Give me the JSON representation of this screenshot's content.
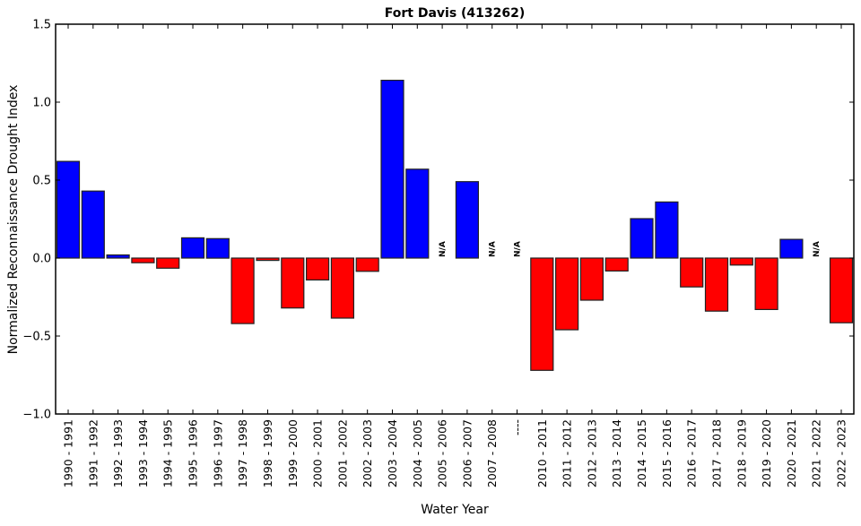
{
  "chart_data": {
    "type": "bar",
    "title": "Fort Davis (413262)",
    "xlabel": "Water Year",
    "ylabel": "Normalized Reconnaissance Drought Index",
    "ylim": [
      -1.0,
      1.5
    ],
    "yticks": [
      -1.0,
      -0.5,
      0.0,
      0.5,
      1.0,
      1.5
    ],
    "ytick_labels": [
      "−1.0",
      "−0.5",
      "0.0",
      "0.5",
      "1.0",
      "1.5"
    ],
    "grid": false,
    "legend": null,
    "colors": {
      "positive": "#0000ff",
      "negative": "#ff0000",
      "edge": "#222222"
    },
    "categories": [
      "1990 - 1991",
      "1991 - 1992",
      "1992 - 1993",
      "1993 - 1994",
      "1994 - 1995",
      "1995 - 1996",
      "1996 - 1997",
      "1997 - 1998",
      "1998 - 1999",
      "1999 - 2000",
      "2000 - 2001",
      "2001 - 2002",
      "2002 - 2003",
      "2003 - 2004",
      "2004 - 2005",
      "2005 - 2006",
      "2006 - 2007",
      "2007 - 2008",
      "----",
      "2010 - 2011",
      "2011 - 2012",
      "2012 - 2013",
      "2013 - 2014",
      "2014 - 2015",
      "2015 - 2016",
      "2016 - 2017",
      "2017 - 2018",
      "2018 - 2019",
      "2019 - 2020",
      "2020 - 2021",
      "2021 - 2022",
      "2022 - 2023"
    ],
    "values": [
      0.62,
      0.43,
      0.02,
      -0.03,
      -0.065,
      0.13,
      0.125,
      -0.42,
      -0.015,
      -0.32,
      -0.14,
      -0.385,
      -0.085,
      1.14,
      0.57,
      null,
      0.49,
      null,
      null,
      -0.72,
      -0.46,
      -0.27,
      -0.083,
      0.253,
      0.36,
      -0.185,
      -0.34,
      -0.045,
      -0.33,
      0.12,
      null,
      -0.415
    ],
    "missing_label": "N/A",
    "annotations": [
      {
        "category": "2005 - 2006",
        "text": "N/A"
      },
      {
        "category": "2007 - 2008",
        "text": "N/A"
      },
      {
        "category": "----",
        "text": "N/A"
      },
      {
        "category": "2021 - 2022",
        "text": "N/A"
      }
    ]
  }
}
